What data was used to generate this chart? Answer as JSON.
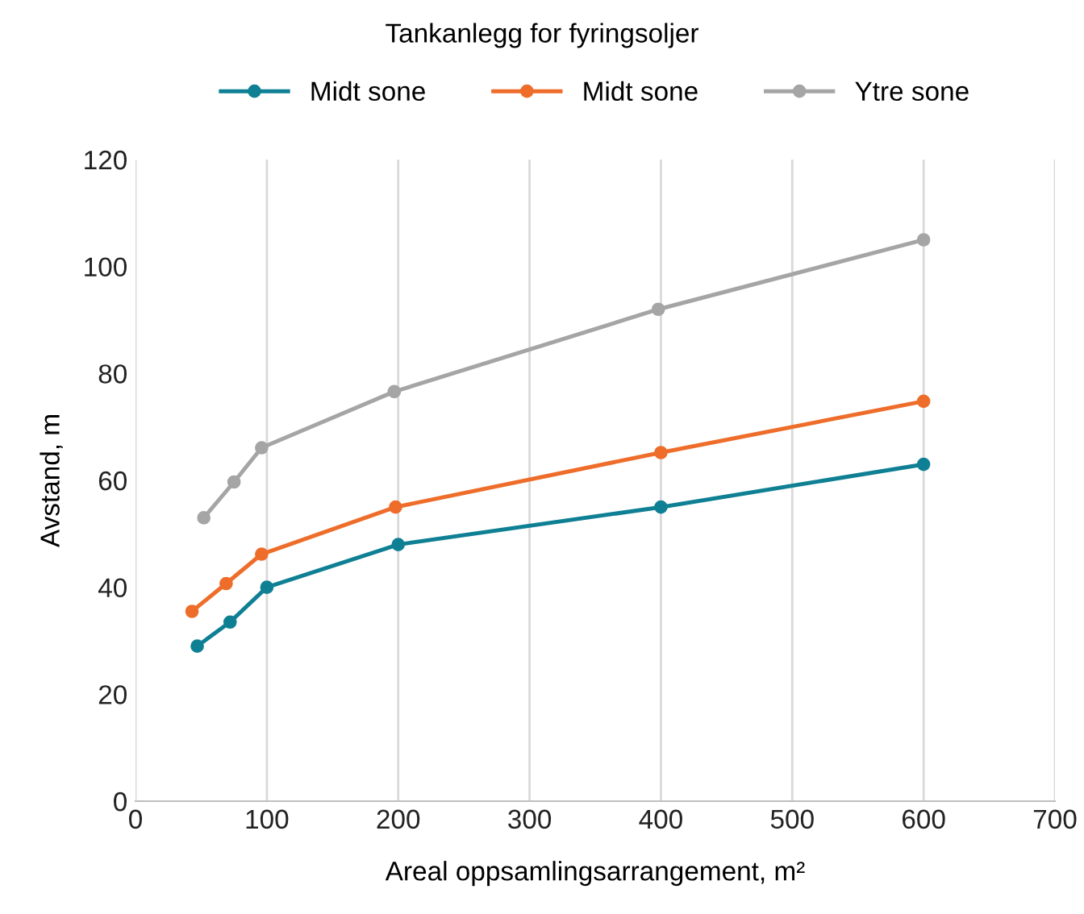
{
  "chart_data": {
    "type": "line",
    "title": "Tankanlegg for fyringsoljer",
    "xlabel": "Areal oppsamlingsarrangement, m²",
    "ylabel": "Avstand, m",
    "series": [
      {
        "name": "Midt sone",
        "color": "#0f8094",
        "x": [
          47,
          72,
          100,
          200,
          400,
          600
        ],
        "values": [
          29,
          33.5,
          40,
          48,
          55,
          63
        ]
      },
      {
        "name": "Midt sone",
        "color": "#ee6d2a",
        "x": [
          43,
          69,
          96,
          198,
          400,
          600
        ],
        "values": [
          35.5,
          40.7,
          46.2,
          55,
          65.2,
          74.8
        ]
      },
      {
        "name": "Ytre sone",
        "color": "#a5a5a5",
        "x": [
          52,
          75,
          96,
          197,
          398,
          600
        ],
        "values": [
          53,
          59.7,
          66.1,
          76.6,
          92,
          105
        ]
      }
    ],
    "xlim": [
      0,
      700
    ],
    "xticks": [
      0,
      100,
      200,
      300,
      400,
      500,
      600,
      700
    ],
    "ylim": [
      0,
      120
    ],
    "yticks": [
      0,
      20,
      40,
      60,
      80,
      100,
      120
    ],
    "grid": "x",
    "legend": "top",
    "marker": "circle",
    "line_style": "solid"
  }
}
